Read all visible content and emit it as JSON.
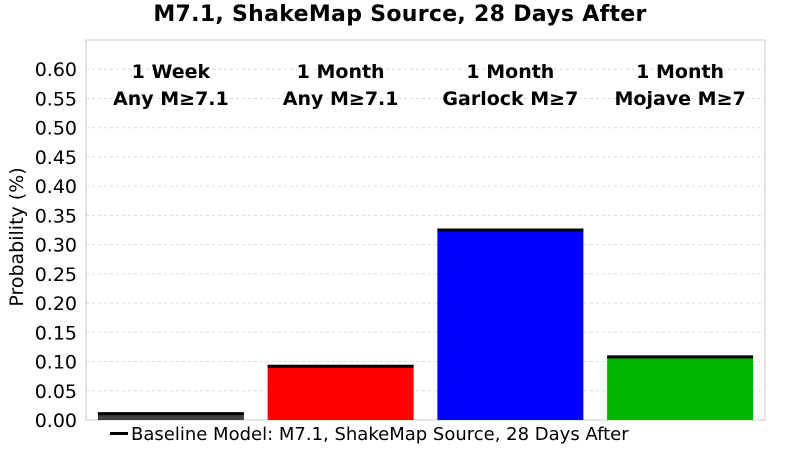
{
  "chart_data": {
    "type": "bar",
    "title": "M7.1, ShakeMap Source, 28 Days After",
    "xlabel": "",
    "ylabel": "Probability (%)",
    "ylim": [
      0,
      0.65
    ],
    "yticks": [
      "0.00",
      "0.05",
      "0.10",
      "0.15",
      "0.20",
      "0.25",
      "0.30",
      "0.35",
      "0.40",
      "0.45",
      "0.50",
      "0.55",
      "0.60"
    ],
    "grid": true,
    "categories": [
      {
        "line1": "1 Week",
        "line2": "Any M≥7.1"
      },
      {
        "line1": "1 Month",
        "line2": "Any M≥7.1"
      },
      {
        "line1": "1 Month",
        "line2": "Garlock M≥7"
      },
      {
        "line1": "1 Month",
        "line2": "Mojave M≥7"
      }
    ],
    "values": [
      0.011,
      0.092,
      0.325,
      0.108
    ],
    "baseline_values": [
      0.011,
      0.092,
      0.325,
      0.108
    ],
    "colors": [
      "#404040",
      "#ff0000",
      "#0000ff",
      "#00b400"
    ],
    "legend": {
      "label": "Baseline Model: M7.1, ShakeMap Source, 28 Days After",
      "position": "bottom"
    }
  }
}
